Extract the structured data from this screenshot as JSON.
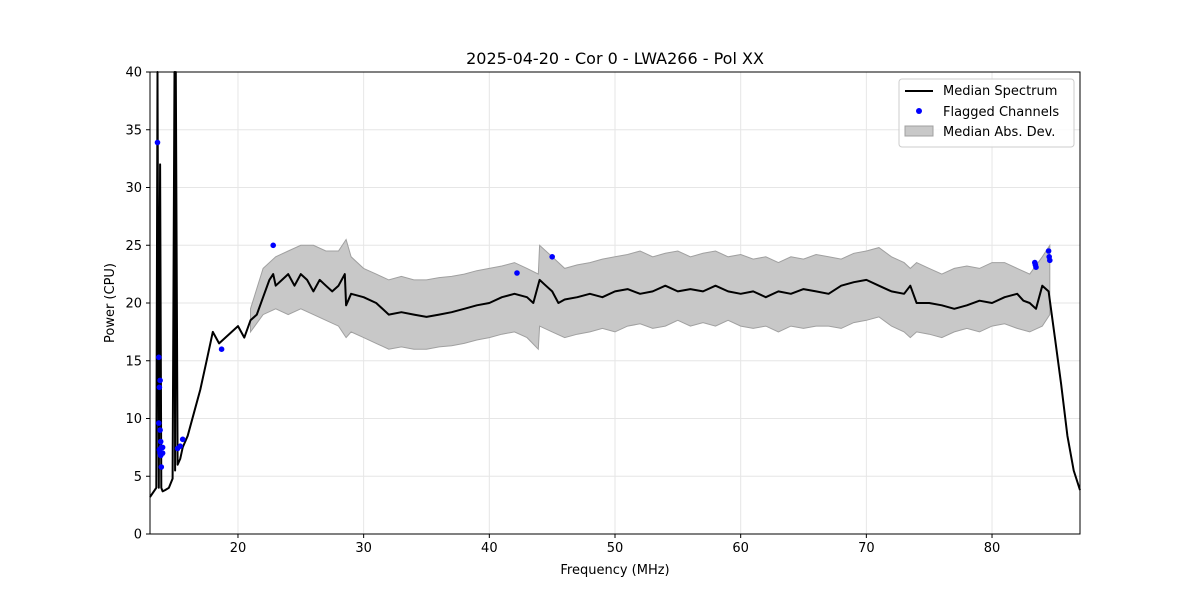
{
  "chart_data": {
    "type": "line",
    "title": "2025-04-20 - Cor 0 - LWA266 - Pol XX",
    "xlabel": "Frequency (MHz)",
    "ylabel": "Power (CPU)",
    "xlim": [
      13.0,
      87.0
    ],
    "ylim": [
      0,
      40
    ],
    "xticks": [
      20,
      30,
      40,
      50,
      60,
      70,
      80
    ],
    "yticks": [
      0,
      5,
      10,
      15,
      20,
      25,
      30,
      35,
      40
    ],
    "grid": true,
    "legend_position": "top-right",
    "legend": [
      "Median Spectrum",
      "Flagged Channels",
      "Median Abs. Dev."
    ],
    "colors": {
      "line": "#000000",
      "flagged": "#0000ff",
      "band": "#c8c8c8",
      "band_edge": "#a0a0a0"
    },
    "series": [
      {
        "name": "Median Spectrum",
        "kind": "line",
        "x": [
          13.0,
          13.5,
          13.6,
          13.7,
          13.8,
          13.9,
          14.0,
          14.2,
          14.5,
          14.8,
          14.95,
          15.0,
          15.05,
          15.2,
          15.4,
          15.6,
          16.0,
          16.5,
          17.0,
          17.5,
          18.0,
          18.5,
          19.0,
          19.5,
          20.0,
          20.5,
          21.0,
          21.5,
          22.0,
          22.5,
          22.8,
          23.0,
          23.5,
          24.0,
          24.5,
          25.0,
          25.5,
          26.0,
          26.5,
          27.0,
          27.5,
          28.0,
          28.5,
          28.6,
          29.0,
          30.0,
          31.0,
          32.0,
          33.0,
          34.0,
          35.0,
          36.0,
          37.0,
          38.0,
          39.0,
          40.0,
          41.0,
          42.0,
          43.0,
          43.5,
          44.0,
          44.5,
          45.0,
          45.5,
          46.0,
          47.0,
          48.0,
          49.0,
          50.0,
          51.0,
          52.0,
          53.0,
          54.0,
          55.0,
          56.0,
          57.0,
          58.0,
          59.0,
          60.0,
          61.0,
          62.0,
          63.0,
          64.0,
          65.0,
          66.0,
          67.0,
          68.0,
          69.0,
          70.0,
          71.0,
          72.0,
          73.0,
          73.5,
          74.0,
          75.0,
          76.0,
          77.0,
          78.0,
          79.0,
          80.0,
          81.0,
          82.0,
          82.5,
          83.0,
          83.5,
          84.0,
          84.5,
          85.0,
          85.5,
          86.0,
          86.5,
          87.0
        ],
        "y": [
          3.2,
          4.0,
          40.0,
          4.0,
          32.0,
          4.0,
          3.7,
          3.8,
          4.0,
          4.8,
          40.0,
          5.5,
          40.0,
          6.0,
          6.5,
          7.5,
          8.5,
          10.5,
          12.5,
          15.0,
          17.5,
          16.5,
          17.0,
          17.5,
          18.0,
          17.0,
          18.5,
          19.0,
          20.5,
          22.0,
          22.5,
          21.5,
          22.0,
          22.5,
          21.5,
          22.5,
          22.0,
          21.0,
          22.0,
          21.5,
          21.0,
          21.5,
          22.5,
          19.8,
          20.8,
          20.5,
          20.0,
          19.0,
          19.2,
          19.0,
          18.8,
          19.0,
          19.2,
          19.5,
          19.8,
          20.0,
          20.5,
          20.8,
          20.5,
          20.0,
          22.0,
          21.5,
          21.0,
          20.0,
          20.3,
          20.5,
          20.8,
          20.5,
          21.0,
          21.2,
          20.8,
          21.0,
          21.5,
          21.0,
          21.2,
          21.0,
          21.5,
          21.0,
          20.8,
          21.0,
          20.5,
          21.0,
          20.8,
          21.2,
          21.0,
          20.8,
          21.5,
          21.8,
          22.0,
          21.5,
          21.0,
          20.8,
          21.5,
          20.0,
          20.0,
          19.8,
          19.5,
          19.8,
          20.2,
          20.0,
          20.5,
          20.8,
          20.2,
          20.0,
          19.5,
          21.5,
          21.0,
          17.0,
          13.0,
          8.5,
          5.5,
          3.8
        ]
      },
      {
        "name": "Median Abs. Dev.",
        "kind": "band",
        "x": [
          21.0,
          22.0,
          23.0,
          24.0,
          25.0,
          26.0,
          27.0,
          28.0,
          28.6,
          29.0,
          30.0,
          31.0,
          32.0,
          33.0,
          34.0,
          35.0,
          36.0,
          37.0,
          38.0,
          39.0,
          40.0,
          41.0,
          42.0,
          43.0,
          43.9,
          44.0,
          45.0,
          46.0,
          47.0,
          48.0,
          49.0,
          50.0,
          51.0,
          52.0,
          53.0,
          54.0,
          55.0,
          56.0,
          57.0,
          58.0,
          59.0,
          60.0,
          61.0,
          62.0,
          63.0,
          64.0,
          65.0,
          66.0,
          67.0,
          68.0,
          69.0,
          70.0,
          71.0,
          72.0,
          73.0,
          73.5,
          74.0,
          75.0,
          76.0,
          77.0,
          78.0,
          79.0,
          80.0,
          81.0,
          82.0,
          83.0,
          84.0,
          84.6
        ],
        "lower": [
          17.5,
          19.0,
          19.5,
          19.0,
          19.5,
          19.0,
          18.5,
          18.0,
          17.0,
          17.5,
          17.0,
          16.5,
          16.0,
          16.2,
          16.0,
          16.0,
          16.2,
          16.3,
          16.5,
          16.8,
          17.0,
          17.3,
          17.5,
          17.0,
          16.0,
          18.0,
          17.5,
          17.0,
          17.3,
          17.5,
          17.8,
          17.5,
          18.0,
          18.2,
          17.8,
          18.0,
          18.5,
          18.0,
          18.3,
          18.0,
          18.5,
          18.0,
          17.8,
          18.0,
          17.5,
          18.0,
          17.8,
          18.0,
          18.0,
          17.8,
          18.3,
          18.5,
          18.8,
          18.0,
          17.5,
          17.0,
          17.5,
          17.3,
          17.0,
          17.5,
          17.8,
          17.5,
          18.0,
          18.2,
          17.8,
          17.5,
          18.0,
          19.0
        ],
        "upper": [
          19.5,
          23.0,
          24.0,
          24.5,
          25.0,
          25.0,
          24.5,
          24.5,
          25.5,
          24.0,
          23.0,
          22.5,
          22.0,
          22.3,
          22.0,
          22.0,
          22.2,
          22.3,
          22.5,
          22.8,
          23.0,
          23.2,
          23.5,
          23.0,
          22.5,
          25.0,
          24.0,
          23.0,
          23.3,
          23.5,
          23.8,
          24.0,
          24.2,
          24.5,
          24.0,
          24.3,
          24.5,
          24.0,
          24.3,
          24.5,
          24.0,
          24.2,
          23.8,
          24.0,
          23.5,
          24.0,
          23.8,
          24.2,
          24.0,
          23.8,
          24.3,
          24.5,
          24.8,
          24.0,
          23.5,
          23.0,
          23.5,
          23.0,
          22.5,
          23.0,
          23.2,
          23.0,
          23.5,
          23.5,
          23.0,
          22.5,
          24.0,
          25.0
        ]
      },
      {
        "name": "Flagged Channels",
        "kind": "scatter",
        "x": [
          13.6,
          13.7,
          13.8,
          13.75,
          13.7,
          13.8,
          13.85,
          13.9,
          14.0,
          13.75,
          13.8,
          13.85,
          14.0,
          13.9,
          15.2,
          15.4,
          15.6,
          18.7,
          22.8,
          42.2,
          45.0,
          83.4,
          83.45,
          83.5,
          84.5,
          84.55,
          84.6
        ],
        "y": [
          33.9,
          15.3,
          13.3,
          12.7,
          9.6,
          9.0,
          8.0,
          7.5,
          7.5,
          7.3,
          7.0,
          6.8,
          7.0,
          5.8,
          7.4,
          7.6,
          8.2,
          16.0,
          25.0,
          22.6,
          24.0,
          23.5,
          23.3,
          23.1,
          24.5,
          24.0,
          23.7
        ]
      }
    ]
  }
}
